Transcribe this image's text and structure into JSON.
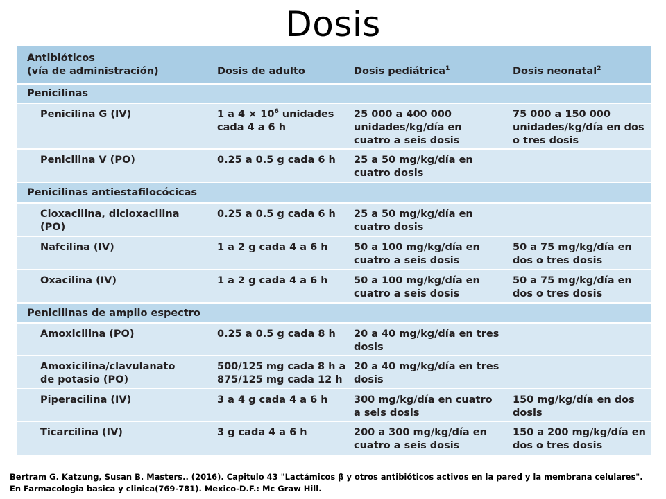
{
  "title": "Dosis",
  "table": {
    "headers": {
      "col1_line1": "Antibióticos",
      "col1_line2": "(vía de administración)",
      "col2": "Dosis de adulto",
      "col3": "Dosis pediátrica",
      "col3_sup": "1",
      "col4": "Dosis neonatal",
      "col4_sup": "2"
    },
    "sections": [
      {
        "name": "Penicilinas"
      },
      {
        "name": "Penicilinas antiestafilocócicas"
      },
      {
        "name": "Penicilinas de amplio espectro"
      }
    ],
    "rows": [
      {
        "drug": [
          "Penicilina G (IV)"
        ],
        "adult": [
          "1 a 4 × 10",
          "cada 4 a 6 h"
        ],
        "adult_sup": "6",
        "adult_tail": " unidades",
        "pediatric": [
          "25 000 a 400 000",
          "unidades/kg/día en",
          "cuatro a seis dosis"
        ],
        "neonatal": [
          "75 000 a 150 000",
          "unidades/kg/día en dos",
          "o tres dosis"
        ]
      },
      {
        "drug": [
          "Penicilina V (PO)"
        ],
        "adult": [
          "0.25 a 0.5 g cada 6 h"
        ],
        "pediatric": [
          "25 a 50 mg/kg/día en",
          "cuatro dosis"
        ],
        "neonatal": []
      },
      {
        "drug": [
          "Cloxacilina, dicloxacilina",
          "(PO)"
        ],
        "adult": [
          "0.25 a 0.5 g cada 6 h"
        ],
        "pediatric": [
          "25 a 50 mg/kg/día en",
          "cuatro dosis"
        ],
        "neonatal": []
      },
      {
        "drug": [
          "Nafcilina (IV)"
        ],
        "adult": [
          "1 a 2 g cada 4 a 6 h"
        ],
        "pediatric": [
          "50 a 100 mg/kg/día en",
          "cuatro a seis dosis"
        ],
        "neonatal": [
          "50 a 75 mg/kg/día en",
          "dos o tres dosis"
        ]
      },
      {
        "drug": [
          "Oxacilina (IV)"
        ],
        "adult": [
          "1 a 2 g cada 4 a 6 h"
        ],
        "pediatric": [
          "50 a 100 mg/kg/día en",
          "cuatro a seis dosis"
        ],
        "neonatal": [
          "50 a 75 mg/kg/día en",
          "dos o tres dosis"
        ]
      },
      {
        "drug": [
          "Amoxicilina (PO)"
        ],
        "adult": [
          "0.25 a 0.5 g cada 8 h"
        ],
        "pediatric": [
          "20 a 40 mg/kg/día en tres",
          "dosis"
        ],
        "neonatal": []
      },
      {
        "drug": [
          "Amoxicilina/clavulanato",
          "de potasio (PO)"
        ],
        "adult": [
          "500/125 mg cada 8 h a",
          "875/125 mg cada 12 h"
        ],
        "pediatric": [
          "20 a 40 mg/kg/día en tres",
          "dosis"
        ],
        "neonatal": []
      },
      {
        "drug": [
          "Piperacilina (IV)"
        ],
        "adult": [
          "3 a 4 g cada 4 a 6 h"
        ],
        "pediatric": [
          "300 mg/kg/día en cuatro",
          "a seis dosis"
        ],
        "neonatal": [
          "150 mg/kg/día en dos",
          "dosis"
        ]
      },
      {
        "drug": [
          "Ticarcilina (IV)"
        ],
        "adult": [
          "3 g cada 4 a 6 h"
        ],
        "pediatric": [
          "200 a 300 mg/kg/día en",
          "cuatro a seis dosis"
        ],
        "neonatal": [
          "150 a 200 mg/kg/día en",
          "dos o tres dosis"
        ]
      }
    ]
  },
  "reference": {
    "line1": "Bertram G. Katzung, Susan B. Masters.. (2016).  Capitulo 43 \"Lactámicos β y otros antibióticos activos en la pared y la membrana celulares\".",
    "line2": "En Farmacologia basica y clinica(769-781). Mexico-D.F.: Mc Graw Hill."
  }
}
